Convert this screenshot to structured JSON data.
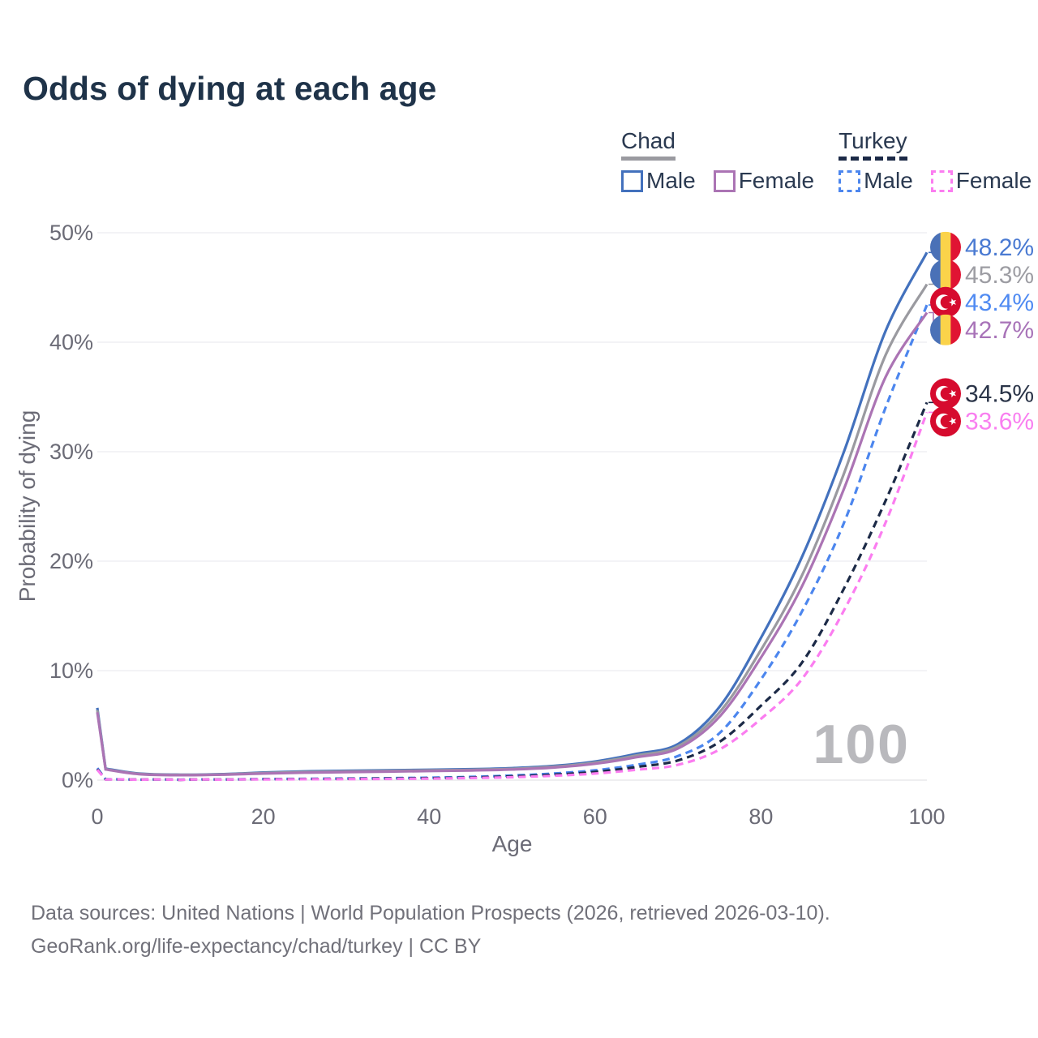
{
  "title": "Odds of dying at each age",
  "watermark": "100",
  "legend": {
    "groups": [
      {
        "country": "Chad",
        "line_style": "solid",
        "underline_color": "#9a9aa0",
        "items": [
          {
            "label": "Male",
            "color": "#4371bd"
          },
          {
            "label": "Female",
            "color": "#ab74b4"
          }
        ]
      },
      {
        "country": "Turkey",
        "line_style": "dashed",
        "underline_color": "#1c2a47",
        "items": [
          {
            "label": "Male",
            "color": "#4c86ee"
          },
          {
            "label": "Female",
            "color": "#fb7df0"
          }
        ]
      }
    ]
  },
  "chart_data": {
    "type": "line",
    "title": "Odds of dying at each age",
    "xlabel": "Age",
    "ylabel": "Probability of dying",
    "xlim": [
      0,
      100
    ],
    "ylim": [
      0,
      50
    ],
    "x_ticks": [
      0,
      20,
      40,
      60,
      80,
      100
    ],
    "y_ticks": [
      0,
      10,
      20,
      30,
      40,
      50
    ],
    "y_tick_suffix": "%",
    "grid": true,
    "legend_position": "top-right",
    "ages": [
      0,
      1,
      5,
      10,
      15,
      20,
      25,
      30,
      35,
      40,
      45,
      50,
      55,
      60,
      65,
      70,
      75,
      80,
      85,
      90,
      95,
      100
    ],
    "series": [
      {
        "name": "Chad Male",
        "country": "Chad",
        "sex": "male",
        "color": "#4371bd",
        "dashed": false,
        "flag": "chad",
        "end_label": "48.2%",
        "end_label_color": "#4a7ad2",
        "values": [
          6.6,
          1.05,
          0.6,
          0.5,
          0.55,
          0.7,
          0.8,
          0.85,
          0.9,
          0.95,
          1.0,
          1.1,
          1.3,
          1.7,
          2.4,
          3.3,
          6.7,
          13.0,
          20.5,
          30.0,
          41.0,
          48.2
        ]
      },
      {
        "name": "Chad Both sexes",
        "country": "Chad",
        "sex": "all",
        "color": "#9a9aa0",
        "dashed": false,
        "flag": "chad",
        "end_label": "45.3%",
        "end_label_color": "#9d9da3",
        "values": [
          6.4,
          1.0,
          0.58,
          0.48,
          0.52,
          0.65,
          0.74,
          0.79,
          0.84,
          0.89,
          0.94,
          1.03,
          1.22,
          1.6,
          2.25,
          3.1,
          6.2,
          11.9,
          18.8,
          28.0,
          38.8,
          45.3
        ]
      },
      {
        "name": "Turkey Male",
        "country": "Turkey",
        "sex": "male",
        "color": "#4c86ee",
        "dashed": true,
        "flag": "turkey",
        "end_label": "43.4%",
        "end_label_color": "#4f8af2",
        "values": [
          1.1,
          0.08,
          0.04,
          0.04,
          0.06,
          0.1,
          0.12,
          0.15,
          0.18,
          0.22,
          0.3,
          0.42,
          0.6,
          0.9,
          1.4,
          2.2,
          4.3,
          9.2,
          15.5,
          23.5,
          34.0,
          43.4
        ]
      },
      {
        "name": "Chad Female",
        "country": "Chad",
        "sex": "female",
        "color": "#ab74b4",
        "dashed": false,
        "flag": "chad",
        "end_label": "42.7%",
        "end_label_color": "#a873b8",
        "values": [
          6.2,
          0.98,
          0.55,
          0.45,
          0.5,
          0.6,
          0.68,
          0.73,
          0.78,
          0.83,
          0.88,
          0.97,
          1.15,
          1.5,
          2.1,
          2.9,
          5.8,
          11.2,
          17.8,
          26.6,
          36.8,
          42.7
        ]
      },
      {
        "name": "Turkey Both sexes",
        "country": "Turkey",
        "sex": "all",
        "color": "#1c2a47",
        "dashed": true,
        "flag": "turkey",
        "end_label": "34.5%",
        "end_label_color": "#2a3448",
        "values": [
          1.0,
          0.07,
          0.035,
          0.03,
          0.05,
          0.08,
          0.1,
          0.12,
          0.15,
          0.18,
          0.24,
          0.34,
          0.5,
          0.75,
          1.2,
          1.8,
          3.5,
          6.8,
          10.8,
          17.5,
          25.5,
          34.5
        ]
      },
      {
        "name": "Turkey Female",
        "country": "Turkey",
        "sex": "female",
        "color": "#fb7df0",
        "dashed": true,
        "flag": "turkey",
        "end_label": "33.6%",
        "end_label_color": "#f97ff0",
        "values": [
          0.95,
          0.06,
          0.03,
          0.025,
          0.04,
          0.06,
          0.08,
          0.09,
          0.11,
          0.14,
          0.19,
          0.27,
          0.4,
          0.6,
          0.95,
          1.4,
          2.8,
          5.6,
          9.3,
          15.5,
          23.5,
          33.6
        ]
      }
    ],
    "flag_colors": {
      "chad": {
        "blue": "#4a71b7",
        "yellow": "#fbd34a",
        "red": "#e01433"
      },
      "turkey": {
        "red": "#d60b2e",
        "white": "#ffffff"
      }
    }
  },
  "footer": {
    "line1": "Data sources: United Nations | World Population Prospects (2026, retrieved 2026-03-10).",
    "line2": "GeoRank.org/life-expectancy/chad/turkey | CC BY"
  }
}
